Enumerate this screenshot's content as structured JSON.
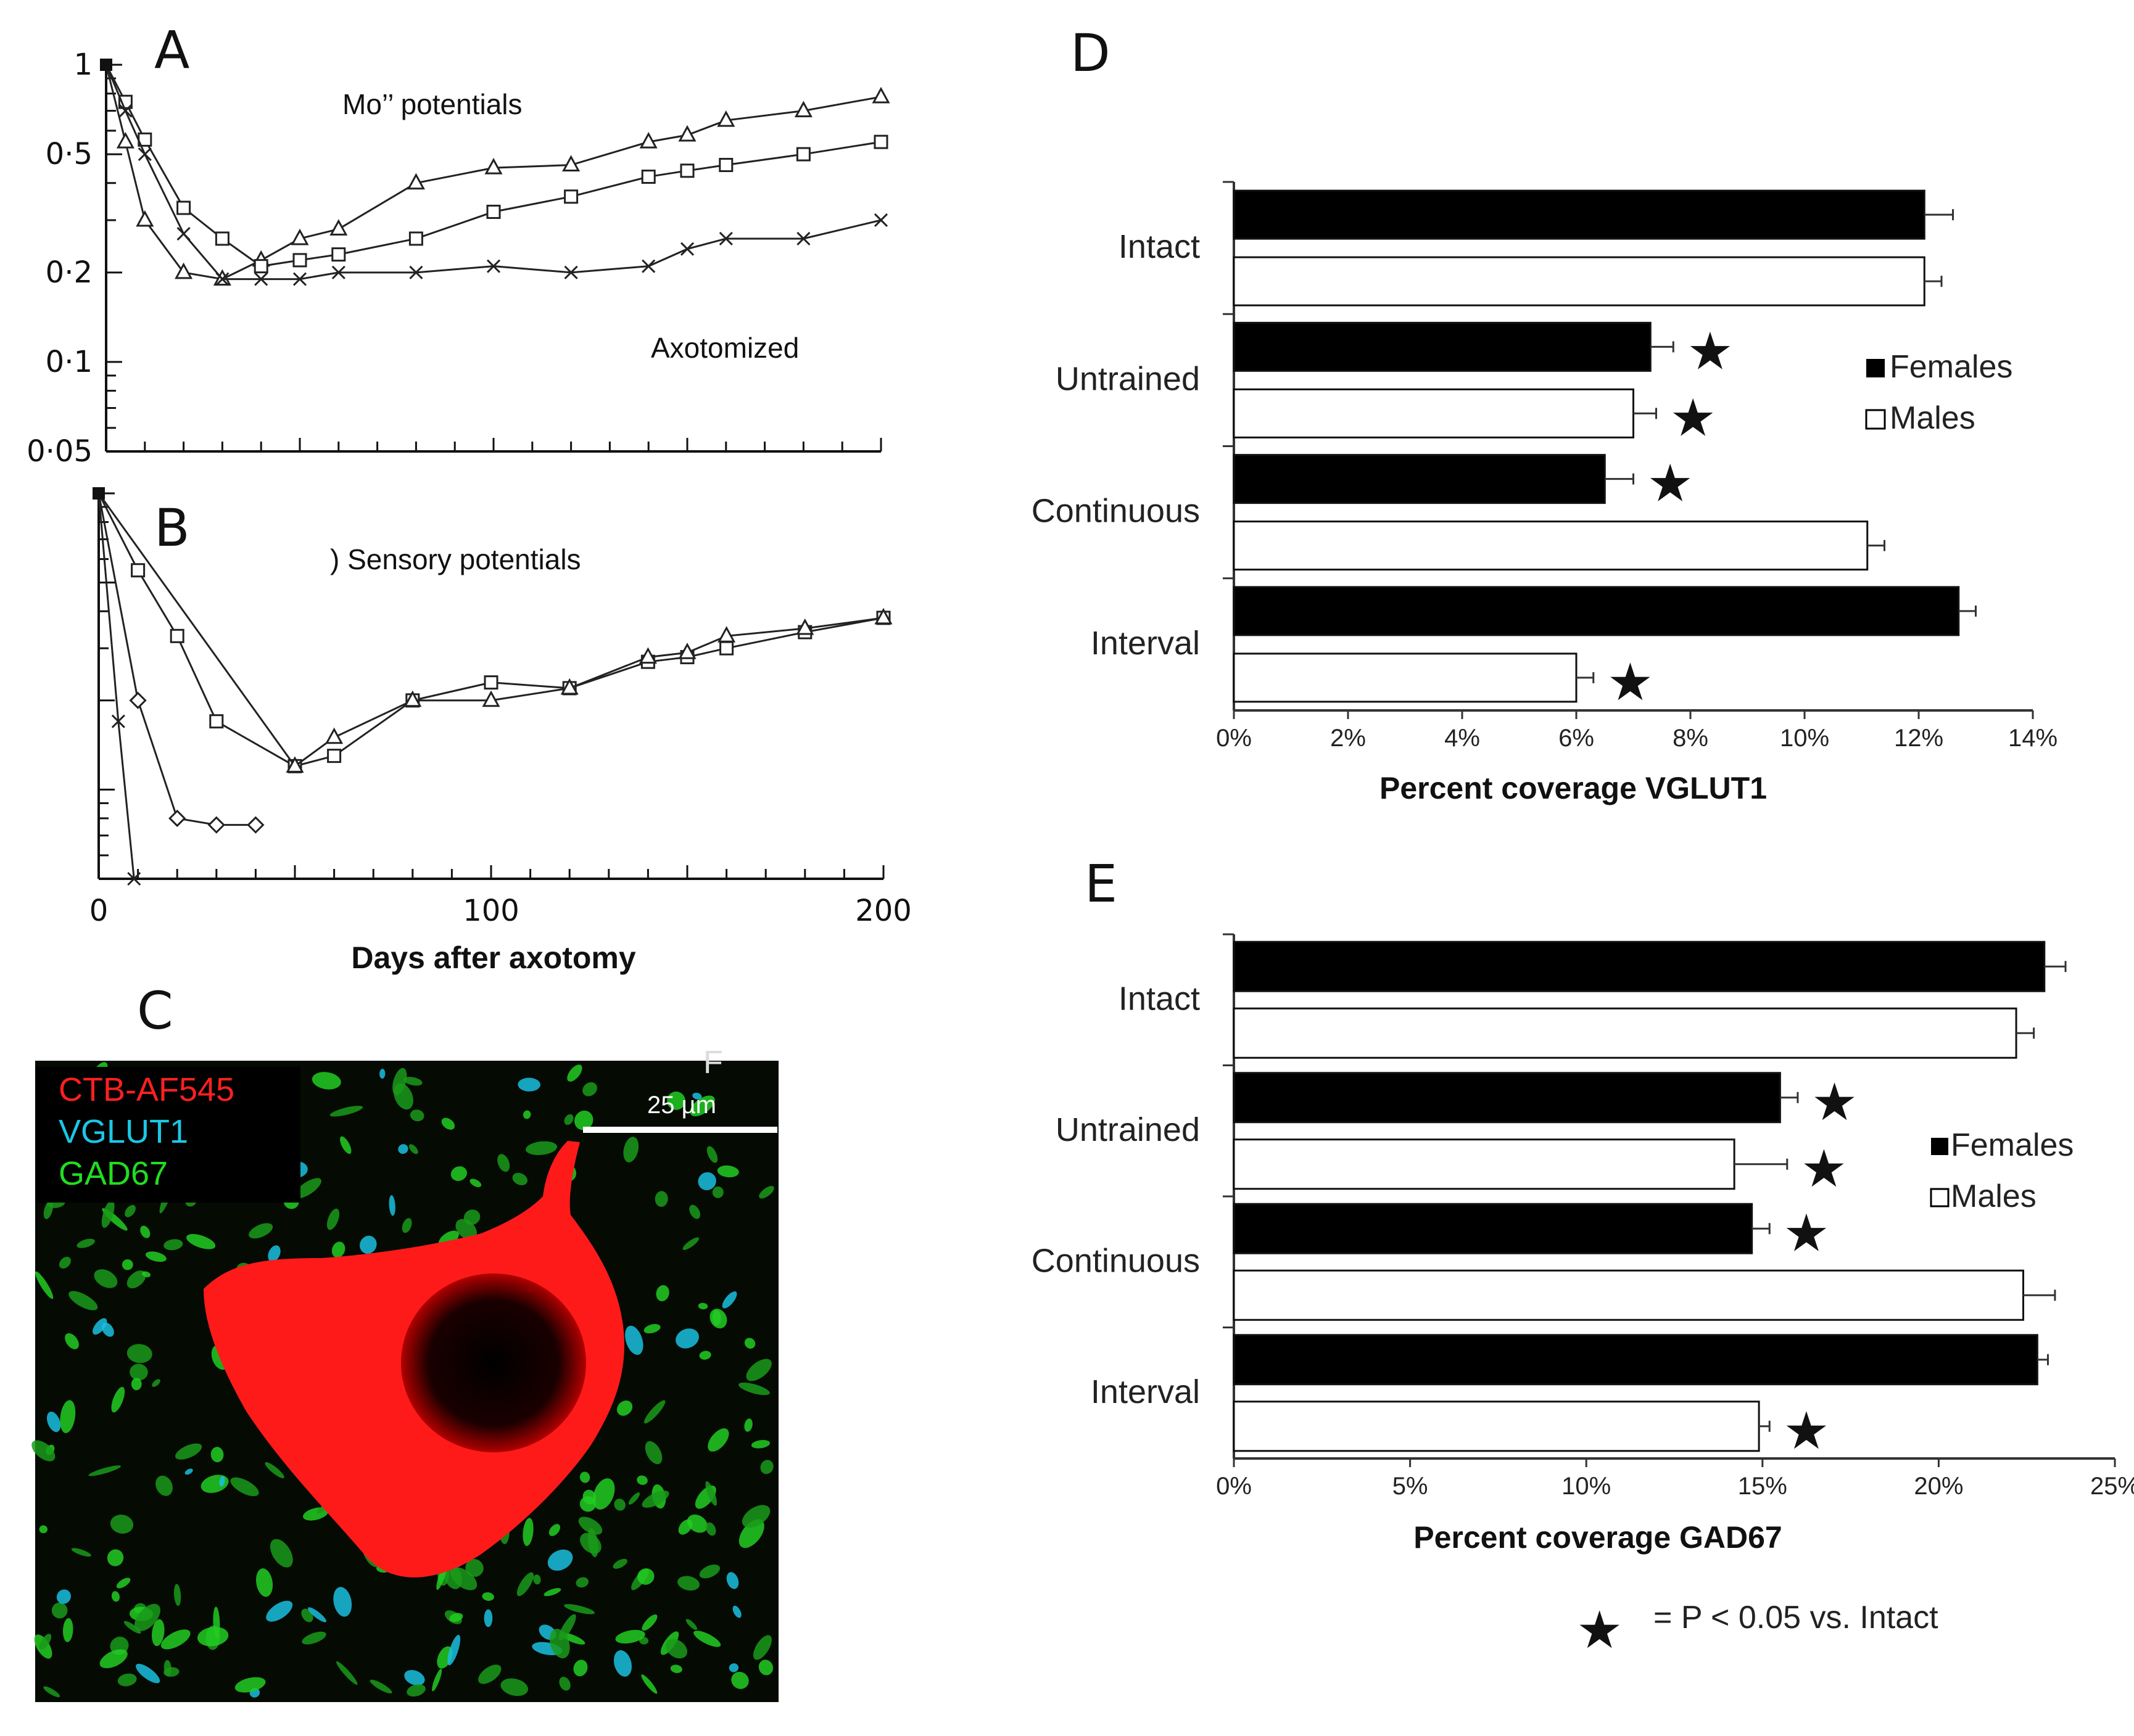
{
  "panels": {
    "A": {
      "letter": "A",
      "title": "Mo’’ potentials",
      "annotation": "Axotomized"
    },
    "B": {
      "letter": "B",
      "title": ") Sensory potentials"
    },
    "C": {
      "letter": "C",
      "stray": "F",
      "labels": [
        "CTB-AF545",
        "VGLUT1",
        "GAD67"
      ],
      "label_colors": [
        "#ff2020",
        "#19c8e6",
        "#22dd22"
      ],
      "scale_bar": "25 µm"
    },
    "D": {
      "letter": "D"
    },
    "E": {
      "letter": "E"
    }
  },
  "footnote": {
    "star": "★",
    "text": "= P < 0.05 vs. Intact"
  },
  "chart_data": [
    {
      "id": "A",
      "type": "line",
      "log_y": true,
      "xlabel": "",
      "ylabel": "",
      "xlim": [
        0,
        200
      ],
      "ylim": [
        0.05,
        1
      ],
      "y_ticks": [
        1,
        0.5,
        0.2,
        0.1,
        0.05
      ],
      "y_tick_labels": [
        "1",
        "0·5",
        "0·2",
        "0·1",
        "0·05"
      ],
      "series": [
        {
          "marker": "triangle",
          "x": [
            0,
            5,
            10,
            20,
            30,
            40,
            50,
            60,
            80,
            100,
            120,
            140,
            150,
            160,
            180,
            200
          ],
          "y": [
            1,
            0.55,
            0.3,
            0.2,
            0.19,
            0.22,
            0.26,
            0.28,
            0.4,
            0.45,
            0.46,
            0.55,
            0.58,
            0.65,
            0.7,
            0.78
          ]
        },
        {
          "marker": "square",
          "x": [
            0,
            5,
            10,
            20,
            30,
            40,
            50,
            60,
            80,
            100,
            120,
            140,
            150,
            160,
            180,
            200
          ],
          "y": [
            1,
            0.75,
            0.56,
            0.33,
            0.26,
            0.21,
            0.22,
            0.23,
            0.26,
            0.32,
            0.36,
            0.42,
            0.44,
            0.46,
            0.5,
            0.55
          ]
        },
        {
          "marker": "x",
          "x": [
            0,
            5,
            10,
            20,
            30,
            40,
            50,
            60,
            80,
            100,
            120,
            140,
            150,
            160,
            180,
            200
          ],
          "y": [
            1,
            0.7,
            0.5,
            0.27,
            0.19,
            0.19,
            0.19,
            0.2,
            0.2,
            0.21,
            0.2,
            0.21,
            0.24,
            0.26,
            0.26,
            0.3
          ]
        }
      ]
    },
    {
      "id": "B",
      "type": "line",
      "log_y": true,
      "xlabel": "Days after axotomy",
      "ylabel": "",
      "xlim": [
        0,
        200
      ],
      "ylim": [
        0.05,
        1
      ],
      "x_ticks": [
        0,
        100,
        200
      ],
      "series": [
        {
          "marker": "square",
          "x": [
            0,
            10,
            20,
            30,
            50,
            60,
            80,
            100,
            120,
            140,
            150,
            160,
            180,
            200
          ],
          "y": [
            1,
            0.55,
            0.33,
            0.17,
            0.12,
            0.13,
            0.2,
            0.23,
            0.22,
            0.27,
            0.28,
            0.3,
            0.34,
            0.38
          ]
        },
        {
          "marker": "triangle",
          "x": [
            0,
            50,
            60,
            80,
            100,
            120,
            140,
            150,
            160,
            180,
            200
          ],
          "y": [
            1,
            0.12,
            0.15,
            0.2,
            0.2,
            0.22,
            0.28,
            0.29,
            0.33,
            0.35,
            0.38
          ]
        },
        {
          "marker": "x",
          "x": [
            0,
            5,
            9
          ],
          "y": [
            1,
            0.17,
            0.05
          ]
        },
        {
          "marker": "diamond",
          "x": [
            0,
            10,
            20,
            30,
            40
          ],
          "y": [
            1,
            0.2,
            0.08,
            0.076,
            0.076
          ]
        }
      ]
    },
    {
      "id": "D",
      "type": "bar",
      "orientation": "horizontal",
      "categories": [
        "Intact",
        "Untrained",
        "Continuous",
        "Interval"
      ],
      "xlabel": "Percent coverage VGLUT1",
      "xlim": [
        0,
        14
      ],
      "x_ticks": [
        "0%",
        "2%",
        "4%",
        "6%",
        "8%",
        "10%",
        "12%",
        "14%"
      ],
      "series": [
        {
          "name": "Females",
          "color": "#000000",
          "values": [
            12.1,
            7.3,
            6.5,
            12.7
          ],
          "errors": [
            0.5,
            0.4,
            0.5,
            0.3
          ],
          "significant": [
            false,
            true,
            true,
            false
          ]
        },
        {
          "name": "Males",
          "color": "#ffffff",
          "values": [
            12.1,
            7.0,
            11.1,
            6.0
          ],
          "errors": [
            0.3,
            0.4,
            0.3,
            0.3
          ],
          "significant": [
            false,
            true,
            false,
            true
          ]
        }
      ]
    },
    {
      "id": "E",
      "type": "bar",
      "orientation": "horizontal",
      "categories": [
        "Intact",
        "Untrained",
        "Continuous",
        "Interval"
      ],
      "xlabel": "Percent coverage GAD67",
      "xlim": [
        0,
        25
      ],
      "x_ticks": [
        "0%",
        "5%",
        "10%",
        "15%",
        "20%",
        "25%"
      ],
      "series": [
        {
          "name": "Females",
          "color": "#000000",
          "values": [
            23.0,
            15.5,
            14.7,
            22.8
          ],
          "errors": [
            0.6,
            0.5,
            0.5,
            0.3
          ],
          "significant": [
            false,
            true,
            true,
            false
          ]
        },
        {
          "name": "Males",
          "color": "#ffffff",
          "values": [
            22.2,
            14.2,
            22.4,
            14.9
          ],
          "errors": [
            0.5,
            1.5,
            0.9,
            0.3
          ],
          "significant": [
            false,
            true,
            false,
            true
          ]
        }
      ]
    }
  ]
}
